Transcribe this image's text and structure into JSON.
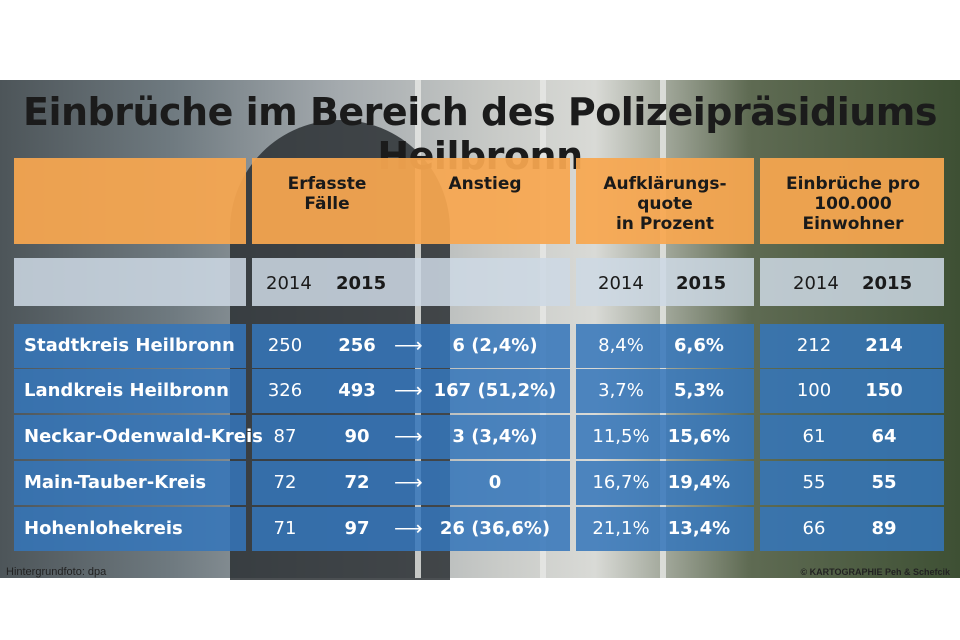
{
  "title": "Einbrüche im Bereich des Polizeipräsidiums Heilbronn",
  "chart_data": {
    "type": "table",
    "headers": {
      "faelle": "Erfasste\nFälle",
      "anstieg": "Anstieg",
      "quote": "Aufklärungs-\nquote\nin Prozent",
      "pro100k": "Einbrüche pro\n100.000\nEinwohner"
    },
    "years": [
      "2014",
      "2015"
    ],
    "rows": [
      {
        "region": "Stadtkreis Heilbronn",
        "faelle_2014": "250",
        "faelle_2015": "256",
        "anstieg": "6 (2,4%)",
        "quote_2014": "8,4%",
        "quote_2015": "6,6%",
        "pro_2014": "212",
        "pro_2015": "214"
      },
      {
        "region": "Landkreis Heilbronn",
        "faelle_2014": "326",
        "faelle_2015": "493",
        "anstieg": "167 (51,2%)",
        "quote_2014": "3,7%",
        "quote_2015": "5,3%",
        "pro_2014": "100",
        "pro_2015": "150"
      },
      {
        "region": "Neckar-Odenwald-Kreis",
        "faelle_2014": "87",
        "faelle_2015": "90",
        "anstieg": "3 (3,4%)",
        "quote_2014": "11,5%",
        "quote_2015": "15,6%",
        "pro_2014": "61",
        "pro_2015": "64"
      },
      {
        "region": "Main-Tauber-Kreis",
        "faelle_2014": "72",
        "faelle_2015": "72",
        "anstieg": "0",
        "quote_2014": "16,7%",
        "quote_2015": "19,4%",
        "pro_2014": "55",
        "pro_2015": "55"
      },
      {
        "region": "Hohenlohekreis",
        "faelle_2014": "71",
        "faelle_2015": "97",
        "anstieg": "26 (36,6%)",
        "quote_2014": "21,1%",
        "quote_2015": "13,4%",
        "pro_2014": "66",
        "pro_2015": "89"
      }
    ]
  },
  "credits": {
    "photo": "Hintergrundfoto: dpa",
    "graphic": "© KARTOGRAPHIE Peh & Schefcik"
  },
  "colors": {
    "header_orange": "#f7a750",
    "row_blue": "#3476ba",
    "year_band": "#cdd8e4"
  }
}
